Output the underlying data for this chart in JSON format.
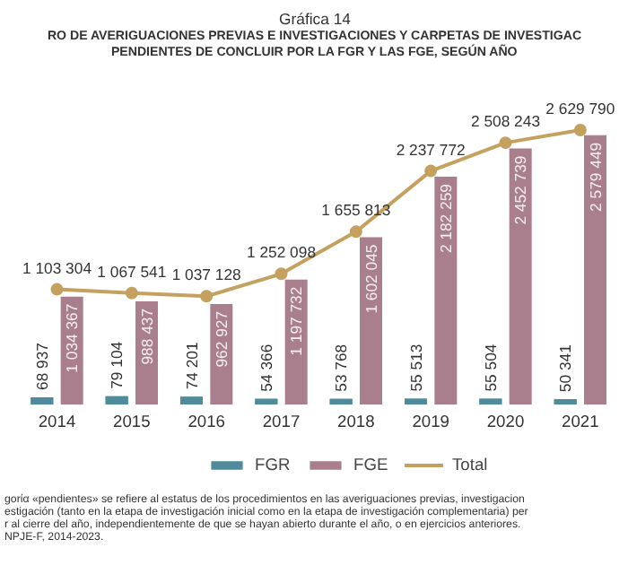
{
  "chart_data": {
    "type": "bar",
    "title": "Gráfica 14",
    "subtitle": "RO DE AVERIGUACIONES PREVIAS E INVESTIGACIONES Y CARPETAS DE INVESTIGAC\nPENDIENTES DE CONCLUIR POR LA FGR Y LAS FGE, SEGÚN AÑO",
    "categories": [
      "2014",
      "2015",
      "2016",
      "2017",
      "2018",
      "2019",
      "2020",
      "2021"
    ],
    "series": [
      {
        "name": "FGR",
        "color": "#4f8b9b",
        "values": [
          68937,
          79104,
          74201,
          54366,
          53768,
          55513,
          55504,
          50341
        ],
        "value_labels": [
          "68 937",
          "79 104",
          "74 201",
          "54 366",
          "53 768",
          "55 513",
          "55 504",
          "50 341"
        ]
      },
      {
        "name": "FGE",
        "color": "#a97f8d",
        "values": [
          1034367,
          988437,
          962927,
          1197732,
          1602045,
          2182259,
          2452739,
          2579449
        ],
        "value_labels": [
          "1 034 367",
          "988 437",
          "962 927",
          "1 197 732",
          "1 602 045",
          "2 182 259",
          "2 452 739",
          "2 579 449"
        ]
      },
      {
        "name": "Total",
        "type": "line",
        "color": "#c4a15e",
        "values": [
          1103304,
          1067541,
          1037128,
          1252098,
          1655813,
          2237772,
          2508243,
          2629790
        ],
        "value_labels": [
          "1 103 304",
          "1 067 541",
          "1 037 128",
          "1 252 098",
          "1 655 813",
          "2 237 772",
          "2 508 243",
          "2 629 790"
        ]
      }
    ],
    "marker": "circle",
    "legend": "bottom",
    "annotations": [
      "gorία «pendientes» se refiere al estatus de los procedimientos en las averiguaciones previas, investigacion",
      "estigación (tanto en la etapa de investigación inicial como en la etapa de investigación complementaria) per",
      "r al cierre del año, independientemente de que se hayan abierto durante el año, o en ejercicios anteriores.",
      "NPJE-F, 2014-2023."
    ]
  }
}
